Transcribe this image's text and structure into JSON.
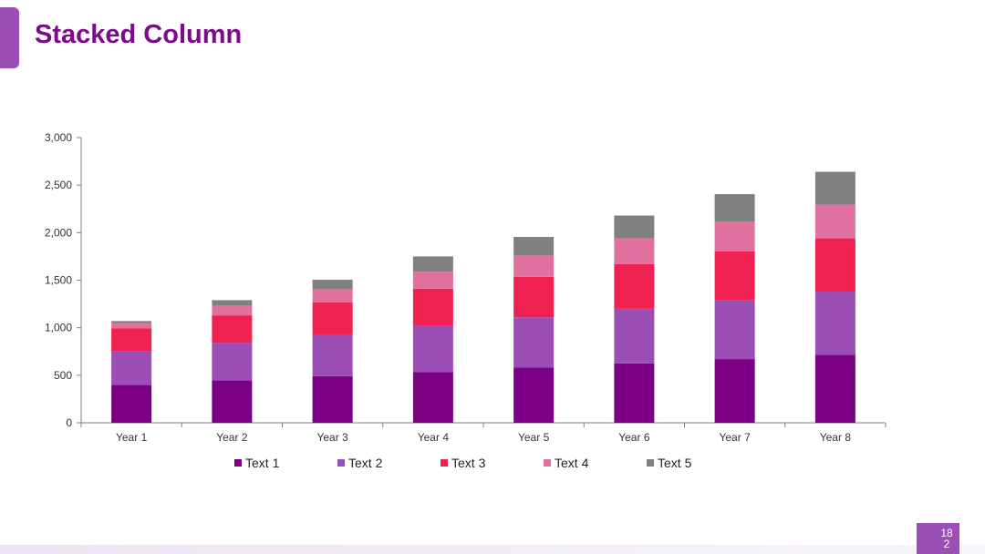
{
  "slide": {
    "title": "Stacked Column",
    "page_number": "182",
    "accent_color": "#9b4fb6",
    "title_color": "#7d0a8c"
  },
  "chart_data": {
    "type": "bar",
    "stacked": true,
    "title": "",
    "xlabel": "",
    "ylabel": "",
    "ylim": [
      0,
      3000
    ],
    "yticks": [
      0,
      500,
      1000,
      1500,
      2000,
      2500,
      3000
    ],
    "ytick_labels": [
      "0",
      "500",
      "1,000",
      "1,500",
      "2,000",
      "2,500",
      "3,000"
    ],
    "categories": [
      "Year 1",
      "Year 2",
      "Year 3",
      "Year 4",
      "Year 5",
      "Year 6",
      "Year 7",
      "Year 8"
    ],
    "legend_position": "bottom",
    "series": [
      {
        "name": "Text 1",
        "color": "#7b0085",
        "values": [
          400,
          445,
          490,
          535,
          580,
          625,
          670,
          715
        ]
      },
      {
        "name": "Text 2",
        "color": "#9b4fb6",
        "values": [
          350,
          395,
          440,
          485,
          530,
          575,
          620,
          665
        ]
      },
      {
        "name": "Text 3",
        "color": "#ee2150",
        "values": [
          245,
          290,
          335,
          390,
          425,
          470,
          515,
          560
        ]
      },
      {
        "name": "Text 4",
        "color": "#e0709e",
        "values": [
          55,
          100,
          140,
          180,
          225,
          270,
          310,
          355
        ]
      },
      {
        "name": "Text 5",
        "color": "#808080",
        "values": [
          20,
          60,
          100,
          160,
          195,
          240,
          290,
          345
        ]
      }
    ]
  }
}
